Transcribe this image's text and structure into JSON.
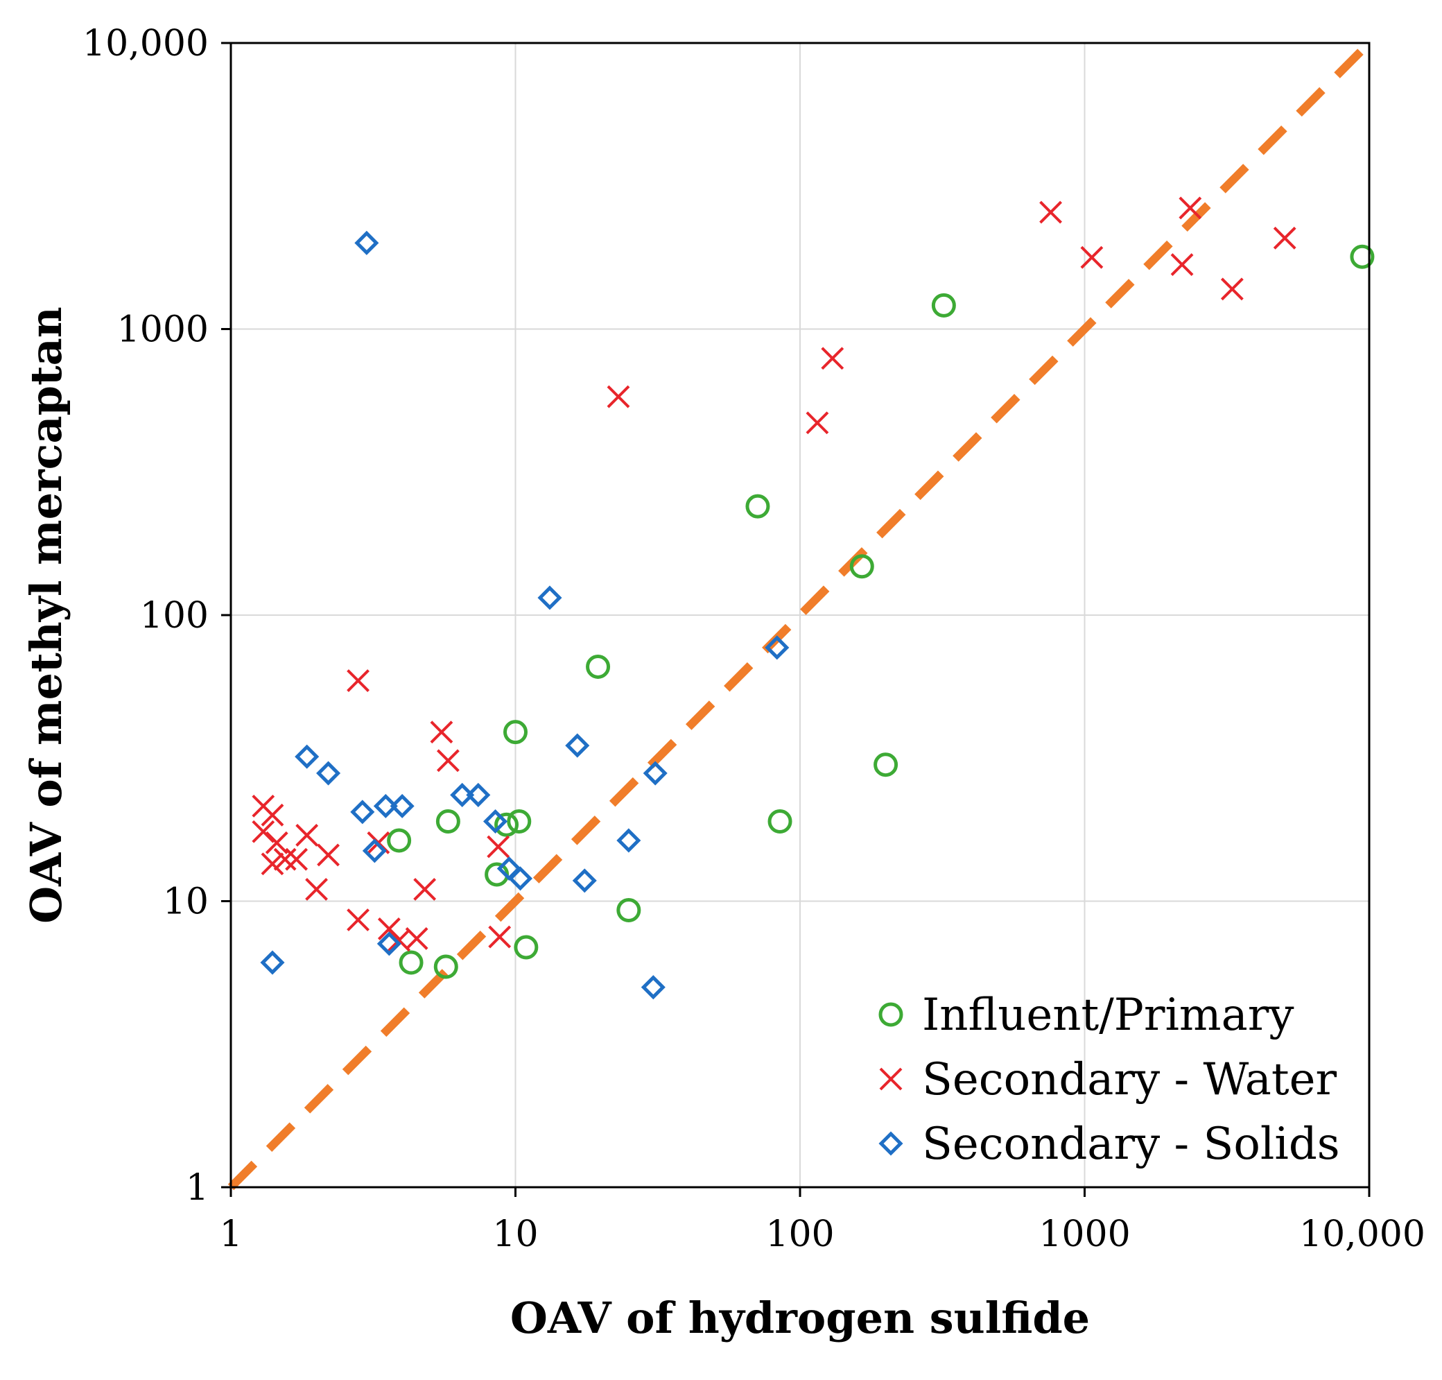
{
  "chart_data": {
    "type": "scatter",
    "xlabel": "OAV of hydrogen sulfide",
    "ylabel": "OAV of methyl mercaptan",
    "xscale": "log",
    "yscale": "log",
    "xlim": [
      1,
      10000
    ],
    "ylim": [
      1,
      10000
    ],
    "xticks": [
      1,
      10,
      100,
      1000,
      10000
    ],
    "yticks": [
      1,
      10,
      100,
      1000,
      10000
    ],
    "xtick_labels": [
      "1",
      "10",
      "100",
      "1000",
      "10,000"
    ],
    "ytick_labels": [
      "1",
      "10",
      "100",
      "1000",
      "10,000"
    ],
    "grid": true,
    "legend_position": "bottom-right",
    "reference_line": {
      "style": "dashed",
      "color": "#F07D2A",
      "x": [
        1,
        10000
      ],
      "y": [
        1,
        10000
      ]
    },
    "series": [
      {
        "name": "Influent/Primary",
        "marker": "circle",
        "color": "#3DAA35",
        "points": [
          [
            9450,
            1790
          ],
          [
            320,
            1210
          ],
          [
            71,
            240
          ],
          [
            165,
            148
          ],
          [
            19.5,
            66
          ],
          [
            10,
            39
          ],
          [
            200,
            30
          ],
          [
            85,
            19
          ],
          [
            10.3,
            19
          ],
          [
            5.8,
            19
          ],
          [
            9.3,
            18.5
          ],
          [
            3.9,
            16.3
          ],
          [
            8.6,
            12.4
          ],
          [
            25,
            9.3
          ],
          [
            10.9,
            6.9
          ],
          [
            4.3,
            6.1
          ],
          [
            5.7,
            5.9
          ]
        ]
      },
      {
        "name": "Secondary - Water",
        "marker": "x",
        "color": "#E8252B",
        "points": [
          [
            760,
            2560
          ],
          [
            2350,
            2650
          ],
          [
            1060,
            1780
          ],
          [
            5050,
            2080
          ],
          [
            2200,
            1680
          ],
          [
            3300,
            1380
          ],
          [
            130,
            790
          ],
          [
            115,
            470
          ],
          [
            23,
            580
          ],
          [
            2.8,
            59
          ],
          [
            5.5,
            39
          ],
          [
            5.8,
            31
          ],
          [
            1.3,
            21.5
          ],
          [
            1.4,
            20
          ],
          [
            1.3,
            17.5
          ],
          [
            1.45,
            16
          ],
          [
            1.85,
            17
          ],
          [
            1.4,
            13.5
          ],
          [
            1.55,
            14
          ],
          [
            1.7,
            14
          ],
          [
            2.2,
            14.5
          ],
          [
            3.3,
            16
          ],
          [
            8.7,
            15.5
          ],
          [
            2.0,
            11
          ],
          [
            4.8,
            11
          ],
          [
            2.8,
            8.6
          ],
          [
            3.6,
            8
          ],
          [
            3.9,
            7.3
          ],
          [
            4.5,
            7.4
          ],
          [
            8.8,
            7.5
          ]
        ]
      },
      {
        "name": "Secondary - Solids",
        "marker": "diamond",
        "color": "#1F6FC5",
        "points": [
          [
            3.0,
            2000
          ],
          [
            13.2,
            115
          ],
          [
            83,
            77
          ],
          [
            16.5,
            35
          ],
          [
            31,
            28
          ],
          [
            1.85,
            32
          ],
          [
            2.2,
            28
          ],
          [
            6.5,
            23.5
          ],
          [
            7.4,
            23.5
          ],
          [
            2.9,
            20.5
          ],
          [
            3.5,
            21.5
          ],
          [
            4.0,
            21.5
          ],
          [
            8.5,
            19
          ],
          [
            25,
            16.3
          ],
          [
            3.2,
            15
          ],
          [
            9.5,
            13
          ],
          [
            10.4,
            12
          ],
          [
            17.5,
            11.8
          ],
          [
            1.4,
            6.1
          ],
          [
            3.6,
            7.1
          ],
          [
            30.5,
            5
          ]
        ]
      }
    ]
  }
}
